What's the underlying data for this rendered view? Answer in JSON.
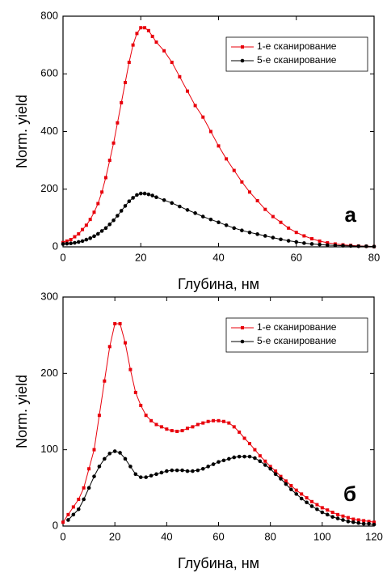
{
  "chart_data": [
    {
      "type": "line",
      "annotation": "а",
      "xlabel": "Глубина, нм",
      "ylabel": "Norm. yield",
      "x": [
        0,
        1,
        2,
        3,
        4,
        5,
        6,
        7,
        8,
        9,
        10,
        11,
        12,
        13,
        14,
        15,
        16,
        17,
        18,
        19,
        20,
        21,
        22,
        23,
        24,
        26,
        28,
        30,
        32,
        34,
        36,
        38,
        40,
        42,
        44,
        46,
        48,
        50,
        52,
        54,
        56,
        58,
        60,
        62,
        64,
        66,
        68,
        70,
        72,
        74,
        76,
        78,
        80
      ],
      "series": [
        {
          "name": "1-е сканирование",
          "color": "#e8000b",
          "marker": "square",
          "values": [
            15,
            20,
            25,
            35,
            45,
            60,
            75,
            95,
            120,
            150,
            190,
            240,
            300,
            360,
            430,
            500,
            570,
            640,
            700,
            740,
            760,
            760,
            750,
            730,
            710,
            680,
            640,
            590,
            540,
            490,
            450,
            400,
            350,
            305,
            265,
            225,
            190,
            160,
            130,
            105,
            85,
            65,
            50,
            38,
            28,
            20,
            14,
            10,
            7,
            5,
            3,
            2,
            1
          ]
        },
        {
          "name": "5-е сканирование",
          "color": "#000000",
          "marker": "circle",
          "values": [
            10,
            11,
            12,
            14,
            17,
            20,
            25,
            30,
            37,
            45,
            55,
            65,
            78,
            92,
            108,
            125,
            142,
            158,
            170,
            180,
            185,
            185,
            182,
            178,
            172,
            162,
            152,
            140,
            128,
            117,
            105,
            95,
            85,
            75,
            65,
            57,
            50,
            44,
            38,
            32,
            26,
            21,
            17,
            13,
            10,
            8,
            6,
            5,
            4,
            3,
            2,
            2,
            1
          ]
        }
      ],
      "xlim": [
        0,
        80
      ],
      "ylim": [
        0,
        800
      ],
      "xticks": [
        0,
        20,
        40,
        60,
        80
      ],
      "yticks": [
        0,
        200,
        400,
        600,
        800
      ],
      "legend": "upper right"
    },
    {
      "type": "line",
      "annotation": "б",
      "xlabel": "Глубина, нм",
      "ylabel": "Norm. yield",
      "x": [
        0,
        2,
        4,
        6,
        8,
        10,
        12,
        14,
        16,
        18,
        20,
        22,
        24,
        26,
        28,
        30,
        32,
        34,
        36,
        38,
        40,
        42,
        44,
        46,
        48,
        50,
        52,
        54,
        56,
        58,
        60,
        62,
        64,
        66,
        68,
        70,
        72,
        74,
        76,
        78,
        80,
        82,
        84,
        86,
        88,
        90,
        92,
        94,
        96,
        98,
        100,
        102,
        104,
        106,
        108,
        110,
        112,
        114,
        116,
        118,
        120
      ],
      "series": [
        {
          "name": "1-е сканирование",
          "color": "#e8000b",
          "marker": "square",
          "values": [
            5,
            15,
            25,
            35,
            50,
            75,
            100,
            145,
            190,
            235,
            265,
            265,
            240,
            205,
            175,
            158,
            145,
            138,
            133,
            130,
            127,
            125,
            124,
            125,
            128,
            130,
            133,
            135,
            137,
            138,
            138,
            137,
            135,
            130,
            123,
            115,
            108,
            100,
            92,
            85,
            78,
            72,
            65,
            59,
            53,
            47,
            42,
            37,
            32,
            28,
            24,
            21,
            18,
            15,
            13,
            11,
            9,
            8,
            7,
            6,
            5
          ]
        },
        {
          "name": "5-е сканирование",
          "color": "#000000",
          "marker": "circle",
          "values": [
            null,
            8,
            15,
            22,
            35,
            50,
            65,
            78,
            88,
            95,
            98,
            96,
            88,
            78,
            68,
            64,
            64,
            66,
            68,
            70,
            72,
            73,
            73,
            73,
            72,
            72,
            73,
            75,
            78,
            81,
            84,
            86,
            88,
            90,
            91,
            91,
            91,
            89,
            85,
            80,
            75,
            68,
            62,
            55,
            48,
            42,
            36,
            31,
            26,
            22,
            18,
            15,
            12,
            10,
            8,
            6,
            5,
            4,
            3,
            3,
            2
          ]
        }
      ],
      "xlim": [
        0,
        120
      ],
      "ylim": [
        0,
        300
      ],
      "xticks": [
        0,
        20,
        40,
        60,
        80,
        100,
        120
      ],
      "yticks": [
        0,
        100,
        200,
        300
      ],
      "legend": "upper right"
    }
  ]
}
